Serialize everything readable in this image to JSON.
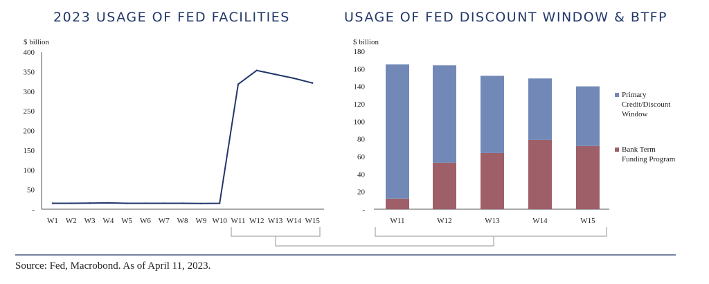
{
  "footer": {
    "source": "Source: Fed, Macrobond. As of April 11, 2023."
  },
  "colors": {
    "title": "#22376a",
    "line": "#22376a",
    "primary": "#7289b7",
    "btfp": "#9e5f69",
    "axis": "#555555",
    "bracket": "#b5b5b5",
    "rule": "#22376a"
  },
  "chart_data": [
    {
      "type": "line",
      "title": "2023 USAGE OF FED FACILITIES",
      "ylabel": "$ billion",
      "xlabel": "",
      "x": [
        "W1",
        "W2",
        "W3",
        "W4",
        "W5",
        "W6",
        "W7",
        "W8",
        "W9",
        "W10",
        "W11",
        "W12",
        "W13",
        "W14",
        "W15"
      ],
      "ylim": [
        0,
        400
      ],
      "yticks": [
        "-",
        "50",
        "100",
        "150",
        "200",
        "250",
        "300",
        "350",
        "400"
      ],
      "grid": false,
      "series": [
        {
          "values": [
            15,
            15,
            15.5,
            16,
            15,
            15,
            15,
            15,
            14.5,
            15,
            318,
            353,
            343,
            333,
            321
          ]
        }
      ]
    },
    {
      "type": "bar",
      "stacked": true,
      "title": "USAGE OF FED DISCOUNT WINDOW & BTFP",
      "ylabel": "$ billion",
      "xlabel": "",
      "categories": [
        "W11",
        "W12",
        "W13",
        "W14",
        "W15"
      ],
      "ylim": [
        0,
        180
      ],
      "yticks": [
        "-",
        "20",
        "40",
        "60",
        "80",
        "100",
        "120",
        "140",
        "160",
        "180"
      ],
      "grid": false,
      "legend": "right",
      "series": [
        {
          "name": "Bank Term Funding Program",
          "values": [
            12,
            53,
            64,
            79,
            72
          ]
        },
        {
          "name": "Primary Credit/Discount Window",
          "values": [
            153,
            111,
            88,
            70,
            68
          ]
        }
      ]
    }
  ]
}
